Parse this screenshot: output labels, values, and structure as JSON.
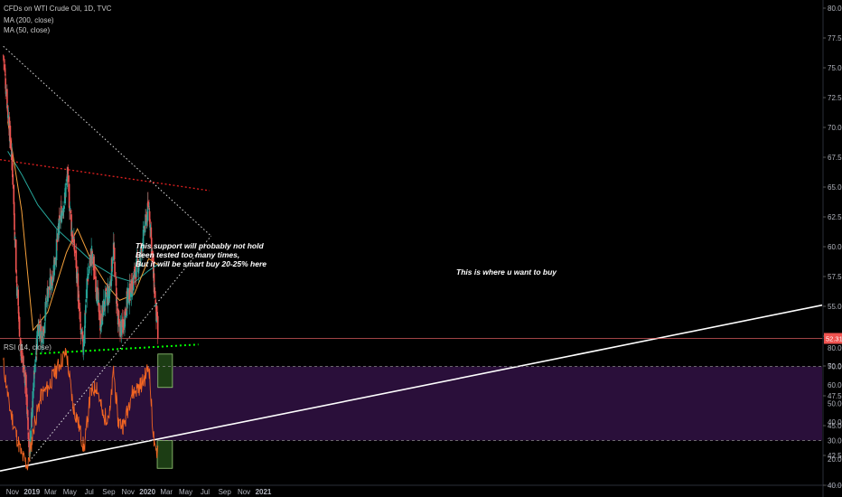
{
  "legend": {
    "symbol": "CFDs on WTI Crude Oil, 1D, TVC",
    "ma200": "MA (200, close)",
    "ma50": "MA (50, close)",
    "rsi": "RSI (14, close)"
  },
  "annotations": {
    "support_note_1": "This support will probably not hold",
    "support_note_2": "Been tested too many times,",
    "support_note_3": "But it will be smart buy 20-25% here",
    "buy_note": "This is where u want to buy"
  },
  "colors": {
    "background": "#000000",
    "candle_up": "#26a69a",
    "candle_down": "#ef5350",
    "ma200": "#26a69a",
    "ma50": "#f7a13b",
    "rsi_line": "#f26522",
    "rsi_band": "#2a0f3a",
    "resistance_line": "#e02020",
    "support_line": "#00ff00",
    "trend_line": "#ffffff",
    "last_price_badge": "#ef5350",
    "buy_zone": "#1c3d14"
  },
  "chart_data": [
    {
      "type": "line",
      "subtype": "candlestick",
      "title": "CFDs on WTI Crude Oil, 1D, TVC",
      "x_tick_labels": [
        "Nov",
        "2019",
        "Mar",
        "May",
        "Jul",
        "Sep",
        "Nov",
        "2020",
        "Mar",
        "May",
        "Jul",
        "Sep",
        "Nov",
        "2021"
      ],
      "y_tick_labels": [
        "80.00",
        "77.50",
        "75.00",
        "72.50",
        "70.00",
        "67.50",
        "65.00",
        "62.50",
        "60.00",
        "57.50",
        "55.00",
        "52.50",
        "50.00",
        "47.50",
        "45.00",
        "42.50",
        "40.00"
      ],
      "ylim": [
        39.5,
        81
      ],
      "last_price": "52.31",
      "grid": false,
      "series": [
        {
          "name": "CFDs on WTI Crude Oil",
          "x": [
            "2018-10-03",
            "2018-10-17",
            "2018-10-31",
            "2018-11-14",
            "2018-11-28",
            "2018-12-12",
            "2018-12-24",
            "2019-01-07",
            "2019-01-21",
            "2019-02-04",
            "2019-02-18",
            "2019-03-04",
            "2019-03-18",
            "2019-04-01",
            "2019-04-15",
            "2019-04-23",
            "2019-05-06",
            "2019-05-20",
            "2019-06-03",
            "2019-06-12",
            "2019-06-24",
            "2019-07-08",
            "2019-07-22",
            "2019-08-05",
            "2019-08-19",
            "2019-09-02",
            "2019-09-16",
            "2019-09-30",
            "2019-10-14",
            "2019-10-28",
            "2019-11-11",
            "2019-11-25",
            "2019-12-09",
            "2019-12-23",
            "2020-01-06",
            "2020-01-20",
            "2020-02-03"
          ],
          "values": [
            76.0,
            71.5,
            67.0,
            57.0,
            51.0,
            49.0,
            42.5,
            48.5,
            53.5,
            52.5,
            56.0,
            57.0,
            59.5,
            62.5,
            64.0,
            66.0,
            61.5,
            59.0,
            53.0,
            51.5,
            57.0,
            59.5,
            57.0,
            53.5,
            55.5,
            56.0,
            60.0,
            53.5,
            53.0,
            55.5,
            56.5,
            58.0,
            59.0,
            61.5,
            63.5,
            57.5,
            52.3
          ]
        },
        {
          "name": "MA (200, close)",
          "x": [
            "2018-10-17",
            "2018-12-01",
            "2019-01-20",
            "2019-03-20",
            "2019-05-20",
            "2019-07-20",
            "2019-09-20",
            "2019-11-20",
            "2020-01-05",
            "2020-02-03"
          ],
          "values": [
            68.0,
            66.0,
            63.5,
            61.5,
            60.0,
            58.5,
            57.5,
            57.0,
            58.0,
            58.5
          ]
        },
        {
          "name": "MA (50, close)",
          "x": [
            "2018-10-17",
            "2018-11-30",
            "2019-01-05",
            "2019-02-20",
            "2019-04-20",
            "2019-05-25",
            "2019-07-05",
            "2019-08-20",
            "2019-10-05",
            "2019-11-20",
            "2020-01-05",
            "2020-02-03"
          ],
          "values": [
            70.5,
            63.0,
            53.0,
            54.5,
            59.5,
            61.5,
            59.0,
            57.0,
            55.5,
            56.0,
            59.0,
            58.5
          ]
        }
      ]
    },
    {
      "type": "line",
      "title": "RSI (14, close)",
      "y_tick_labels": [
        "80.00",
        "70.00",
        "60.00",
        "50.00",
        "40.00",
        "30.00",
        "20.00"
      ],
      "ylim": [
        13,
        83
      ],
      "levels": [
        70,
        30
      ],
      "series": [
        {
          "name": "RSI (14, close)",
          "x": [
            "2018-10-03",
            "2018-10-20",
            "2018-11-10",
            "2018-11-30",
            "2018-12-20",
            "2019-01-10",
            "2019-02-01",
            "2019-02-20",
            "2019-03-10",
            "2019-04-01",
            "2019-04-20",
            "2019-05-10",
            "2019-05-30",
            "2019-06-15",
            "2019-07-05",
            "2019-07-25",
            "2019-08-15",
            "2019-09-05",
            "2019-09-16",
            "2019-10-01",
            "2019-10-20",
            "2019-11-10",
            "2019-11-30",
            "2019-12-20",
            "2020-01-06",
            "2020-01-15",
            "2020-01-25",
            "2020-02-03"
          ],
          "values": [
            72,
            50,
            35,
            22,
            16,
            40,
            55,
            58,
            65,
            72,
            78,
            50,
            38,
            25,
            55,
            60,
            42,
            45,
            68,
            40,
            38,
            55,
            58,
            62,
            71,
            45,
            22,
            26
          ]
        }
      ]
    }
  ]
}
